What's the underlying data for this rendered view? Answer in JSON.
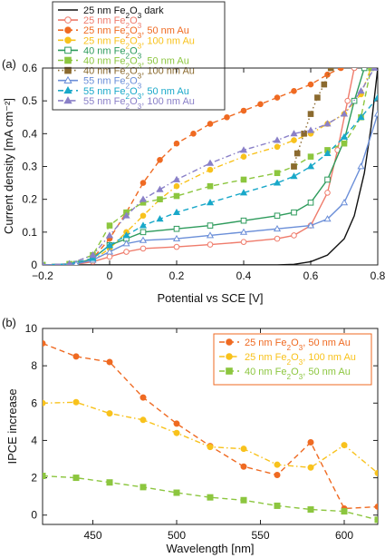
{
  "chart_data": [
    {
      "type": "line",
      "panel_label": "(a)",
      "xlabel": "Potential vs SCE [V]",
      "ylabel": "Current density [mA cm⁻²]",
      "xlim": [
        -0.2,
        0.8
      ],
      "ylim": [
        0,
        0.6
      ],
      "xticks": [
        -0.2,
        0,
        0.2,
        0.4,
        0.6,
        0.8
      ],
      "xtick_labels": [
        "−0.2",
        "0",
        "0.2",
        "0.4",
        "0.6",
        "0.8"
      ],
      "yticks": [
        0,
        0.1,
        0.2,
        0.3,
        0.4,
        0.5,
        0.6
      ],
      "ytick_labels": [
        "0",
        "0.1",
        "0.2",
        "0.3",
        "0.4",
        "0.5",
        "0.6"
      ],
      "grid": false,
      "legend_position": "top-left, outside above plot",
      "series": [
        {
          "name": "25 nm Fe₂O₃ dark",
          "color": "#111111",
          "marker": "none",
          "dash": "solid",
          "x": [
            -0.2,
            0.4,
            0.5,
            0.55,
            0.6,
            0.65,
            0.7,
            0.73,
            0.76,
            0.78,
            0.8
          ],
          "y": [
            0,
            0,
            0,
            0.002,
            0.01,
            0.03,
            0.08,
            0.15,
            0.28,
            0.42,
            0.6
          ]
        },
        {
          "name": "25 nm Fe₂O₃",
          "color": "#ef7b6b",
          "marker": "circle-open",
          "dash": "solid",
          "x": [
            -0.2,
            -0.1,
            -0.05,
            0,
            0.05,
            0.1,
            0.2,
            0.3,
            0.4,
            0.5,
            0.55,
            0.6,
            0.65,
            0.68,
            0.71,
            0.73
          ],
          "y": [
            0,
            0.002,
            0.01,
            0.025,
            0.04,
            0.05,
            0.055,
            0.062,
            0.07,
            0.08,
            0.09,
            0.12,
            0.22,
            0.35,
            0.5,
            0.6
          ]
        },
        {
          "name": "25 nm Fe₂O₃, 50 nm Au",
          "color": "#ef6a22",
          "marker": "circle",
          "dash": "dash",
          "x": [
            -0.2,
            -0.12,
            -0.05,
            0,
            0.05,
            0.1,
            0.15,
            0.2,
            0.25,
            0.3,
            0.35,
            0.4,
            0.45,
            0.5,
            0.55,
            0.6,
            0.65,
            0.69
          ],
          "y": [
            0,
            0.003,
            0.02,
            0.08,
            0.16,
            0.25,
            0.32,
            0.37,
            0.4,
            0.43,
            0.45,
            0.47,
            0.49,
            0.51,
            0.53,
            0.55,
            0.58,
            0.6
          ]
        },
        {
          "name": "25 nm Fe₂O₃, 100 nm Au",
          "color": "#f8c21c",
          "marker": "circle",
          "dash": "dashdot",
          "x": [
            -0.2,
            -0.12,
            -0.05,
            0,
            0.05,
            0.1,
            0.15,
            0.2,
            0.3,
            0.4,
            0.5,
            0.55,
            0.6,
            0.65,
            0.7,
            0.75,
            0.78
          ],
          "y": [
            0,
            0.003,
            0.015,
            0.05,
            0.1,
            0.15,
            0.2,
            0.24,
            0.29,
            0.33,
            0.36,
            0.38,
            0.4,
            0.43,
            0.46,
            0.52,
            0.6
          ]
        },
        {
          "name": "40 nm Fe₂O₃",
          "color": "#2e9b5c",
          "marker": "square-open",
          "dash": "solid",
          "x": [
            -0.2,
            -0.1,
            -0.05,
            0,
            0.05,
            0.1,
            0.2,
            0.3,
            0.4,
            0.5,
            0.55,
            0.6,
            0.65,
            0.7,
            0.73,
            0.76
          ],
          "y": [
            0,
            0.003,
            0.02,
            0.06,
            0.08,
            0.1,
            0.11,
            0.12,
            0.135,
            0.15,
            0.16,
            0.19,
            0.26,
            0.38,
            0.5,
            0.6
          ]
        },
        {
          "name": "40 nm Fe₂O₃, 50 nm Au",
          "color": "#8cc63f",
          "marker": "square",
          "dash": "dash",
          "x": [
            -0.2,
            -0.12,
            -0.05,
            0,
            0.05,
            0.1,
            0.15,
            0.2,
            0.3,
            0.4,
            0.5,
            0.55,
            0.6,
            0.65,
            0.7,
            0.75,
            0.78
          ],
          "y": [
            0,
            0.003,
            0.03,
            0.12,
            0.16,
            0.19,
            0.2,
            0.21,
            0.24,
            0.26,
            0.28,
            0.3,
            0.33,
            0.35,
            0.37,
            0.45,
            0.6
          ]
        },
        {
          "name": "40 nm Fe₂O₃, 100 nm Au",
          "color": "#8b6a2f",
          "marker": "square",
          "dash": "dot",
          "x": [
            0.55,
            0.56,
            0.58,
            0.6,
            0.62,
            0.64,
            0.66
          ],
          "y": [
            0.3,
            0.34,
            0.4,
            0.46,
            0.51,
            0.55,
            0.6
          ]
        },
        {
          "name": "55 nm Fe₂O₃",
          "color": "#6a8ed8",
          "marker": "triangle-open",
          "dash": "solid",
          "x": [
            -0.2,
            -0.1,
            -0.05,
            0,
            0.05,
            0.1,
            0.2,
            0.3,
            0.4,
            0.5,
            0.6,
            0.65,
            0.7,
            0.75,
            0.8
          ],
          "y": [
            0,
            0.003,
            0.015,
            0.04,
            0.065,
            0.075,
            0.08,
            0.09,
            0.1,
            0.11,
            0.12,
            0.14,
            0.19,
            0.3,
            0.46
          ]
        },
        {
          "name": "55 nm Fe₂O₃, 50 nm Au",
          "color": "#19a8c9",
          "marker": "triangle",
          "dash": "dash",
          "x": [
            -0.2,
            -0.12,
            -0.05,
            0,
            0.05,
            0.1,
            0.15,
            0.2,
            0.3,
            0.4,
            0.5,
            0.55,
            0.6,
            0.65,
            0.7,
            0.75,
            0.8
          ],
          "y": [
            0,
            0.003,
            0.02,
            0.06,
            0.09,
            0.12,
            0.14,
            0.16,
            0.19,
            0.22,
            0.25,
            0.27,
            0.3,
            0.34,
            0.39,
            0.45,
            0.51
          ]
        },
        {
          "name": "55 nm Fe₂O₃, 100 nm Au",
          "color": "#8a80c8",
          "marker": "triangle",
          "dash": "dashdot",
          "x": [
            -0.2,
            -0.12,
            -0.05,
            0,
            0.05,
            0.1,
            0.15,
            0.2,
            0.3,
            0.4,
            0.5,
            0.55,
            0.6,
            0.65,
            0.7,
            0.75,
            0.79
          ],
          "y": [
            0,
            0.003,
            0.03,
            0.09,
            0.15,
            0.2,
            0.23,
            0.26,
            0.31,
            0.35,
            0.38,
            0.4,
            0.41,
            0.43,
            0.46,
            0.53,
            0.6
          ]
        }
      ]
    },
    {
      "type": "line",
      "panel_label": "(b)",
      "xlabel": "Wavelength [nm]",
      "ylabel": "IPCE increase",
      "xlim": [
        420,
        620
      ],
      "ylim": [
        -0.5,
        10
      ],
      "xticks": [
        450,
        500,
        550,
        600
      ],
      "xtick_labels": [
        "450",
        "500",
        "550",
        "600"
      ],
      "yticks": [
        0,
        2,
        4,
        6,
        8,
        10
      ],
      "ytick_labels": [
        "0",
        "2",
        "4",
        "6",
        "8",
        "10"
      ],
      "grid": false,
      "legend_position": "top-right",
      "series": [
        {
          "name": "25 nm Fe₂O₃, 50 nm Au",
          "color": "#ef6a22",
          "marker": "circle",
          "dash": "dash",
          "x": [
            420,
            440,
            460,
            480,
            500,
            520,
            540,
            560,
            580,
            600,
            620
          ],
          "y": [
            9.2,
            8.5,
            8.2,
            6.3,
            4.9,
            3.7,
            2.6,
            2.15,
            3.9,
            0.35,
            0.45
          ]
        },
        {
          "name": "25 nm Fe₂O₃, 100 nm Au",
          "color": "#f8c21c",
          "marker": "circle",
          "dash": "dashdot",
          "x": [
            420,
            440,
            460,
            480,
            500,
            520,
            540,
            560,
            580,
            600,
            620
          ],
          "y": [
            6.0,
            6.05,
            5.45,
            5.1,
            4.4,
            3.65,
            3.55,
            2.7,
            2.55,
            3.75,
            2.25
          ]
        },
        {
          "name": "40 nm Fe₂O₃, 50 nm Au",
          "color": "#8cc63f",
          "marker": "square",
          "dash": "dash",
          "x": [
            420,
            440,
            460,
            480,
            500,
            520,
            540,
            560,
            580,
            600,
            620
          ],
          "y": [
            2.1,
            2.0,
            1.75,
            1.5,
            1.2,
            0.95,
            0.8,
            0.5,
            0.3,
            0.2,
            -0.25
          ]
        }
      ]
    }
  ]
}
